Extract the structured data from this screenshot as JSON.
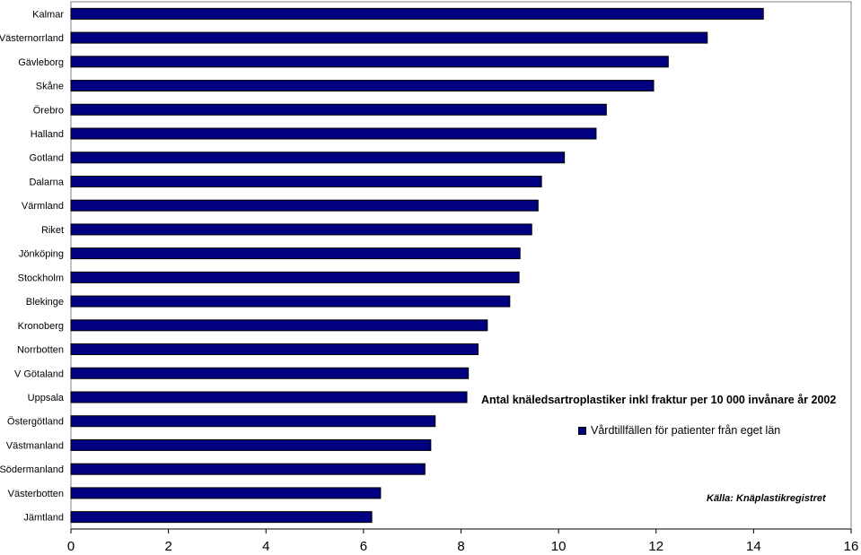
{
  "chart_data": {
    "type": "bar",
    "orientation": "horizontal",
    "title": "Antal knäledsartroplastiker inkl fraktur per 10 000 invånare år 2002",
    "source": "Källa: Knäplastikregistret",
    "categories": [
      "Kalmar",
      "Västernorrland",
      "Gävleborg",
      "Skåne",
      "Örebro",
      "Halland",
      "Gotland",
      "Dalarna",
      "Värmland",
      "Riket",
      "Jönköping",
      "Stockholm",
      "Blekinge",
      "Kronoberg",
      "Norrbotten",
      "V Götaland",
      "Uppsala",
      "Östergötland",
      "Västmanland",
      "Södermanland",
      "Västerbotten",
      "Jämtland"
    ],
    "series": [
      {
        "name": "Vårdtillfällen för patienter från eget län",
        "values": [
          14.2,
          13.05,
          12.25,
          11.95,
          10.98,
          10.77,
          10.12,
          9.65,
          9.58,
          9.45,
          9.21,
          9.19,
          9.0,
          8.54,
          8.35,
          8.15,
          8.12,
          7.47,
          7.38,
          7.26,
          6.35,
          6.17
        ],
        "color": "#000080"
      }
    ],
    "xlim": [
      0,
      16
    ],
    "xticks": [
      0,
      2,
      4,
      6,
      8,
      10,
      12,
      14,
      16
    ],
    "grid": false,
    "legend_position": "right"
  }
}
